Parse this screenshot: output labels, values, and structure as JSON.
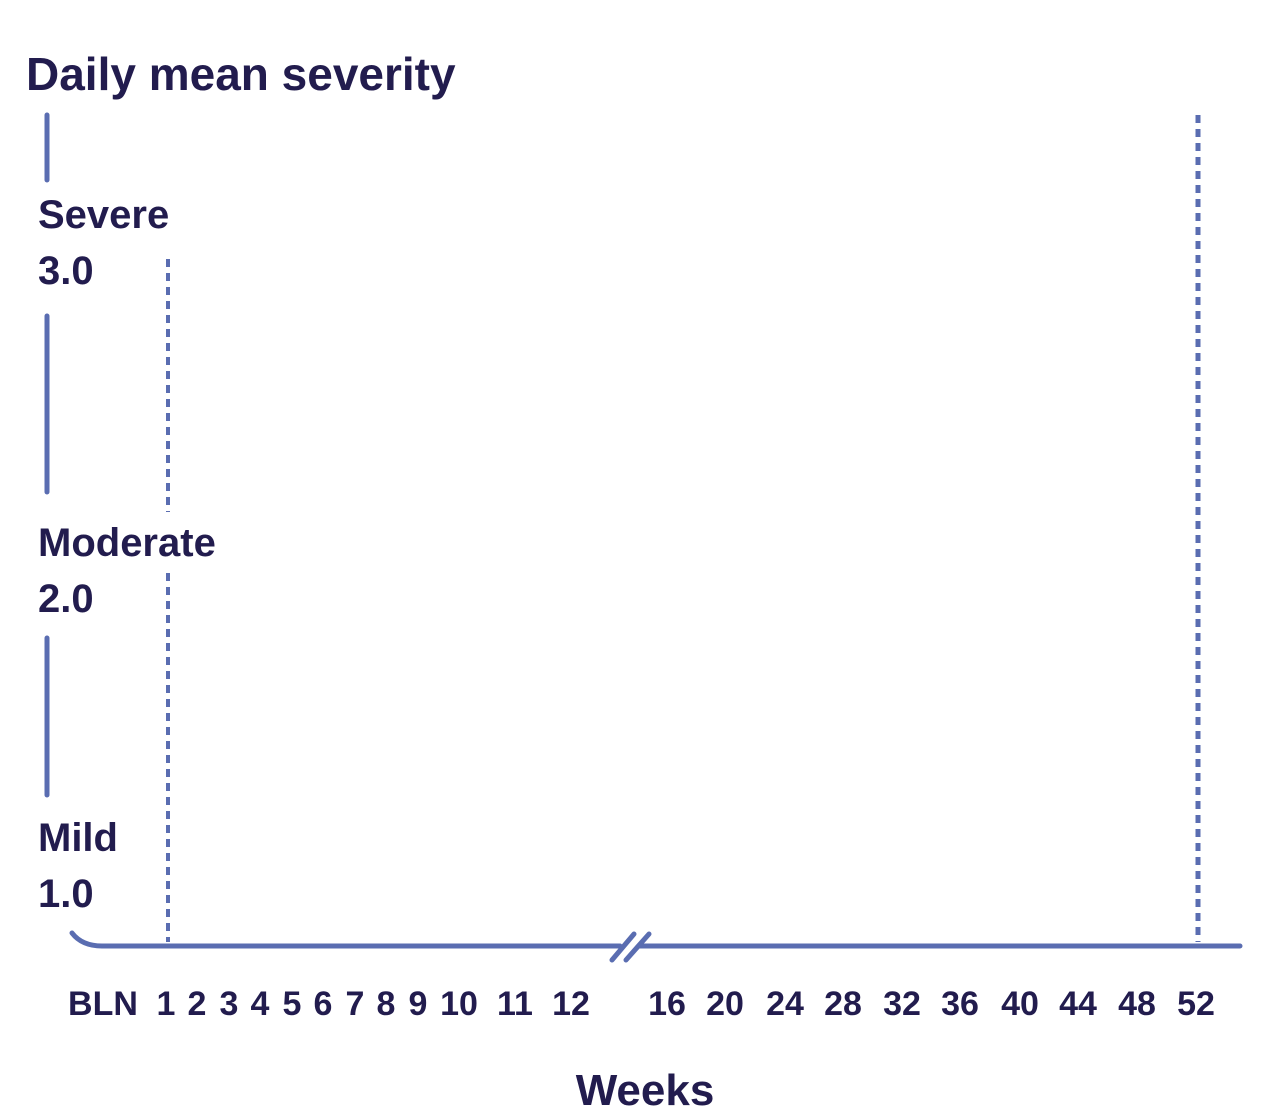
{
  "chart_data": {
    "type": "line",
    "title": "Daily mean severity",
    "xlabel": "Weeks",
    "ylabel": "Daily mean severity",
    "x_ticks": [
      "BLN",
      "1",
      "2",
      "3",
      "4",
      "5",
      "6",
      "7",
      "8",
      "9",
      "10",
      "11",
      "12",
      "16",
      "20",
      "24",
      "28",
      "32",
      "36",
      "40",
      "44",
      "48",
      "52"
    ],
    "y_ticks": [
      {
        "name": "Mild",
        "value": "1.0"
      },
      {
        "name": "Moderate",
        "value": "2.0"
      },
      {
        "name": "Severe",
        "value": "3.0"
      }
    ],
    "ylim": [
      1.0,
      3.0
    ],
    "axis_break": "between week 12 and 16",
    "reference_lines": [
      {
        "week": "1",
        "style": "dashed"
      },
      {
        "week": "52",
        "style": "dashed"
      }
    ],
    "series": [],
    "colors": {
      "text": "#221c4e",
      "axis": "#5a6db1"
    }
  }
}
